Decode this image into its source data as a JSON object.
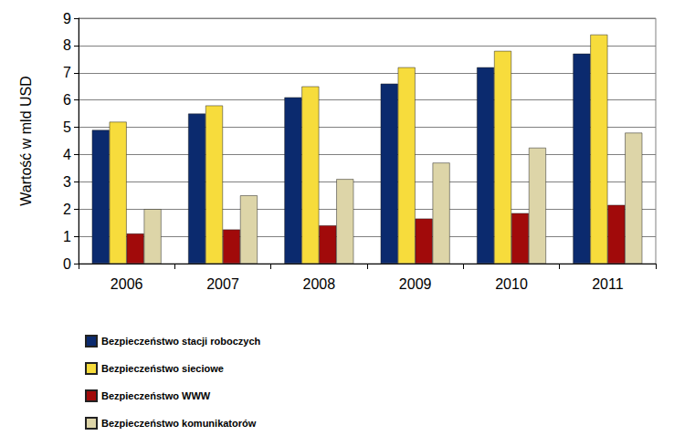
{
  "chart_data": {
    "type": "bar",
    "y_label": "Wartość w mld USD",
    "categories": [
      "2006",
      "2007",
      "2008",
      "2009",
      "2010",
      "2011"
    ],
    "series": [
      {
        "name": "Bezpieczeństwo stacji roboczych",
        "color": "#0b2a6e",
        "values": [
          4.9,
          5.5,
          6.1,
          6.6,
          7.2,
          7.7
        ]
      },
      {
        "name": "Bezpieczeństwo sieciowe",
        "color": "#f7dc3c",
        "values": [
          5.2,
          5.8,
          6.5,
          7.2,
          7.8,
          8.4
        ]
      },
      {
        "name": "Bezpieczeństwo WWW",
        "color": "#a10a0a",
        "values": [
          1.1,
          1.25,
          1.4,
          1.65,
          1.85,
          2.15
        ]
      },
      {
        "name": "Bezpieczeństwo komunikatorów",
        "color": "#ddd5a8",
        "values": [
          2.0,
          2.5,
          3.1,
          3.7,
          4.25,
          4.8
        ]
      }
    ],
    "ylim": [
      0,
      9
    ],
    "yticks": [
      0,
      1,
      2,
      3,
      4,
      5,
      6,
      7,
      8,
      9
    ],
    "grid": true,
    "legend": "bottom"
  }
}
